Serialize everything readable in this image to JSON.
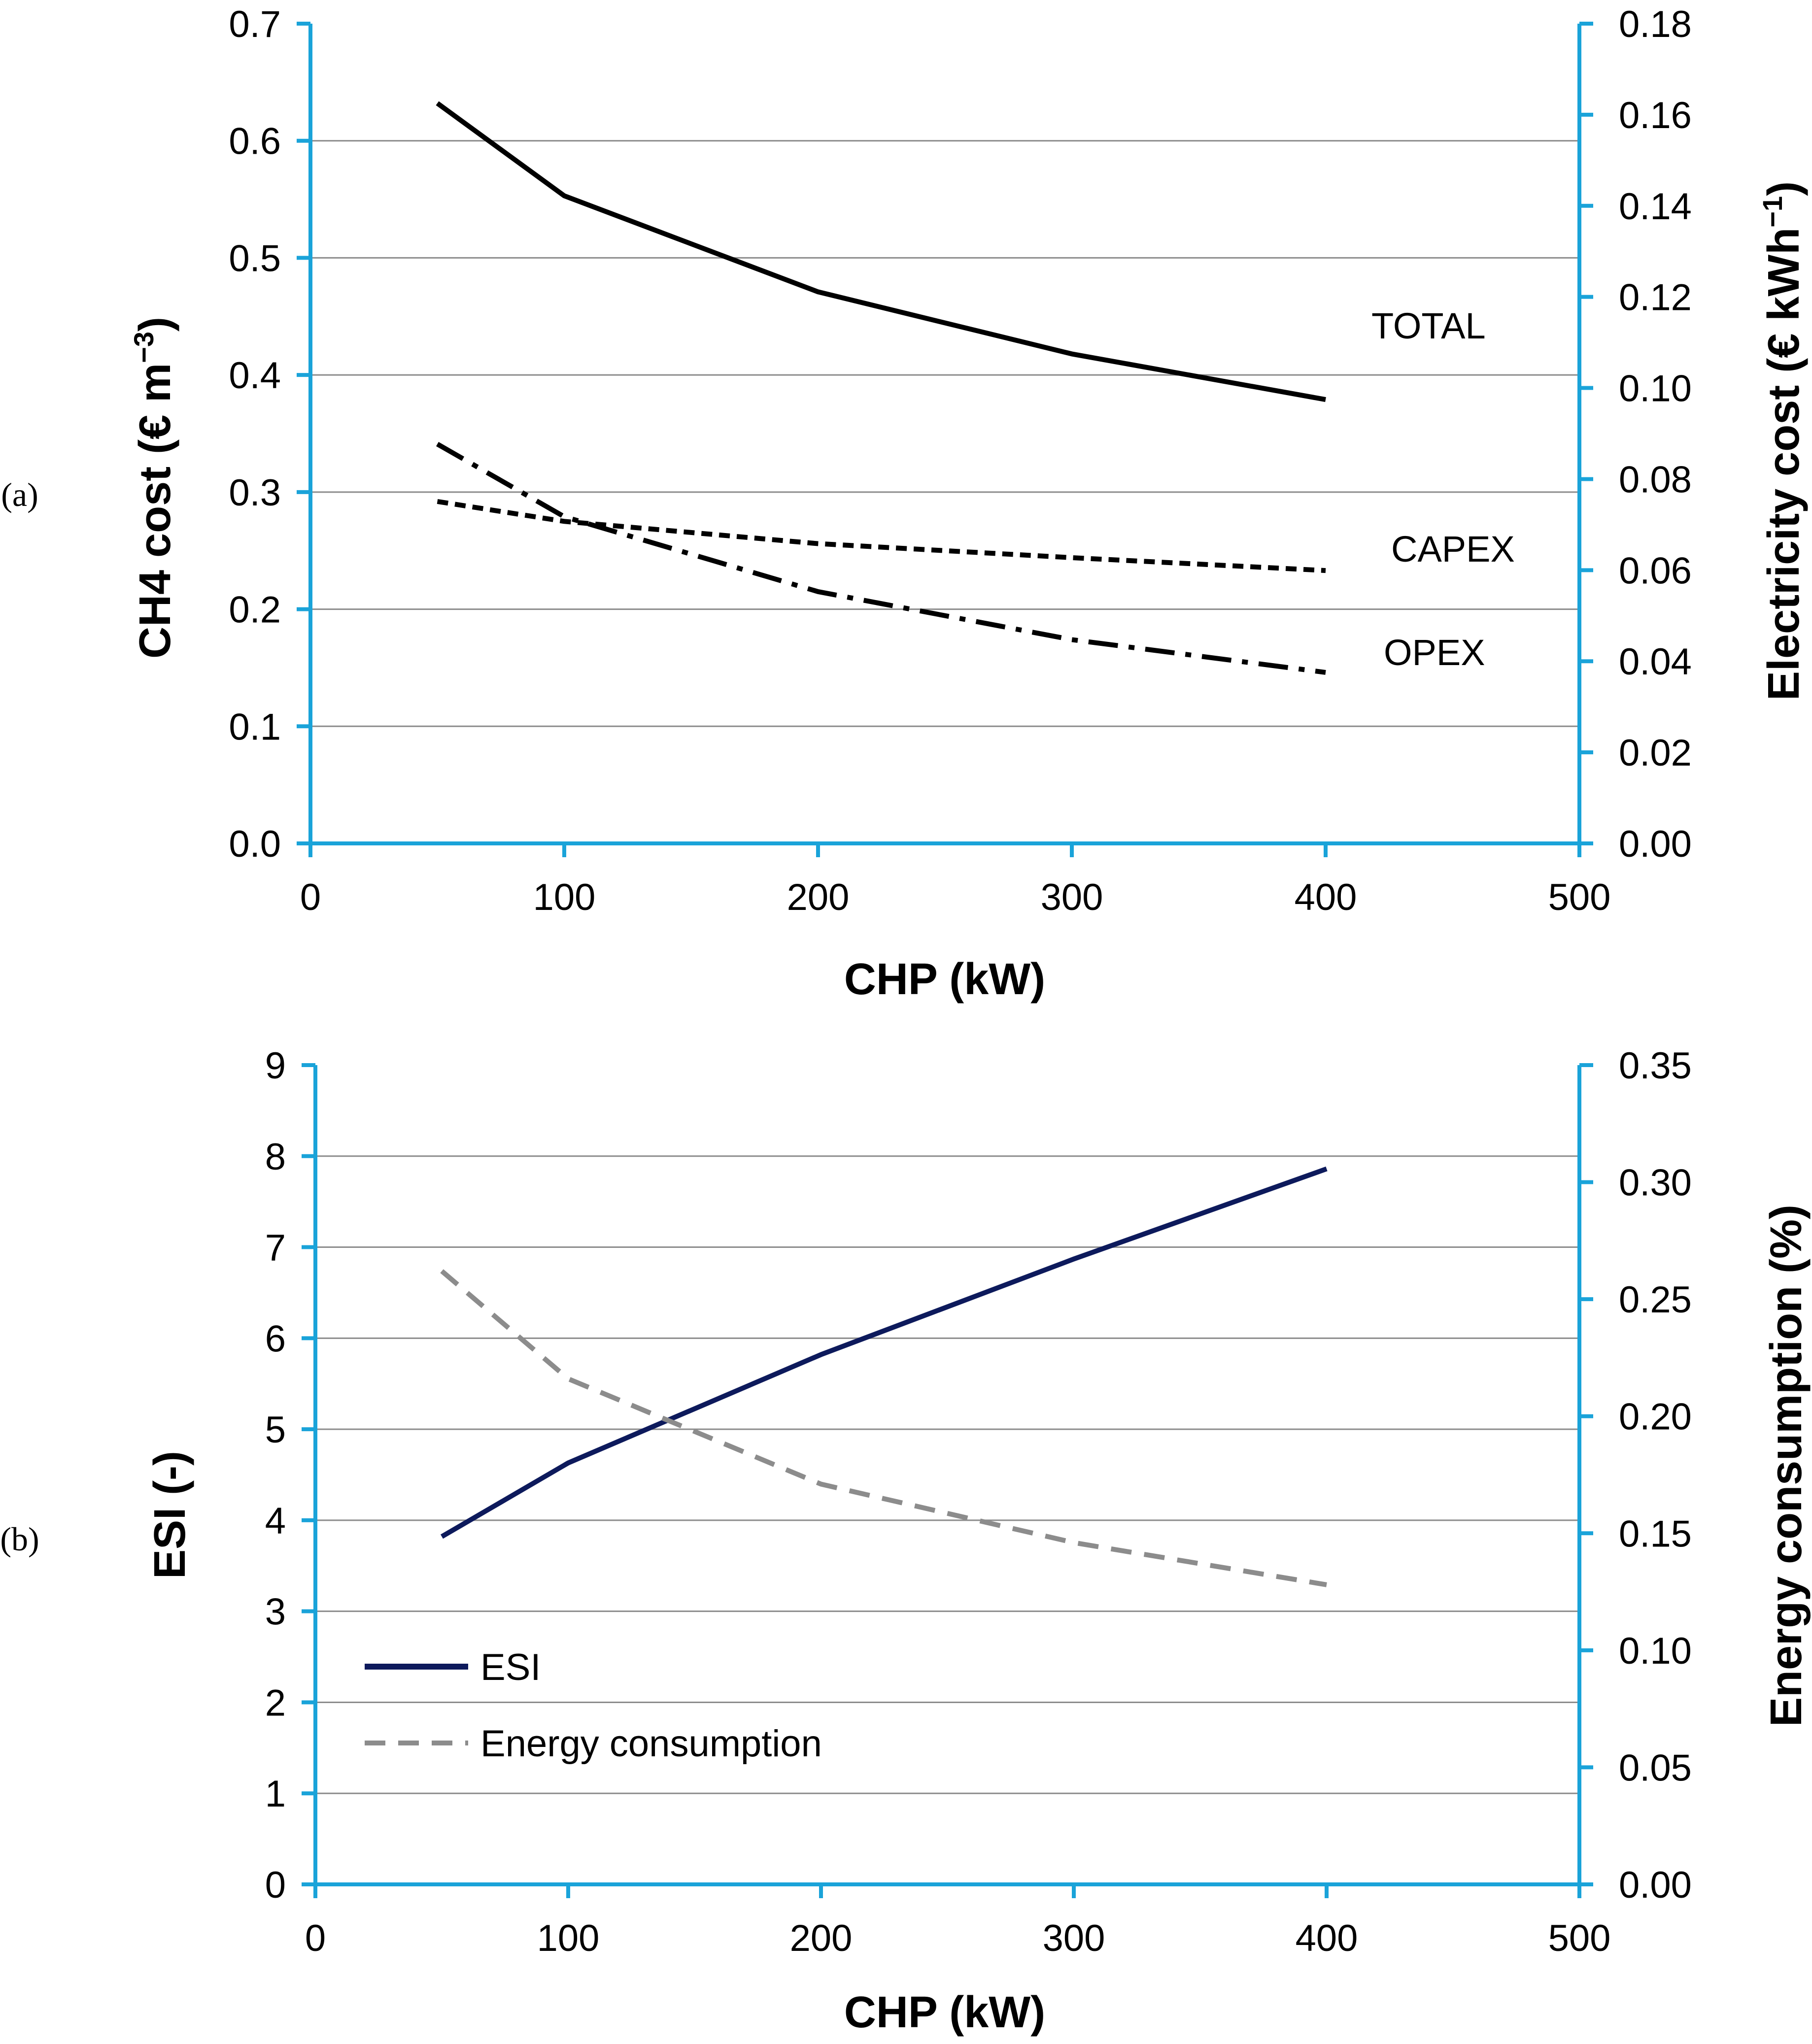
{
  "colors": {
    "axis": "#1aa3d9",
    "grid": "#8c8c8c",
    "black": "#000000",
    "esi": "#0d1a5c",
    "energy": "#8c8c8c"
  },
  "chart_data": [
    {
      "panel_label": "(a)",
      "type": "line",
      "xlabel": "CHP (kW)",
      "ylabel": "CH4 cost (€ m",
      "ylabel_sup": "−3",
      "ylabel_close": ")",
      "ylabel_right": "Electricity cost (€ kWh",
      "ylabel_right_sup": "−1",
      "ylabel_right_close": ")",
      "xlim": [
        0,
        500
      ],
      "ylim": [
        0,
        0.7
      ],
      "ylim_right": [
        0,
        0.18
      ],
      "x_ticks": [
        "0",
        "100",
        "200",
        "300",
        "400",
        "500"
      ],
      "y_ticks": [
        "0.0",
        "0.1",
        "0.2",
        "0.3",
        "0.4",
        "0.5",
        "0.6",
        "0.7"
      ],
      "y_ticks_right": [
        "0.00",
        "0.02",
        "0.04",
        "0.06",
        "0.08",
        "0.10",
        "0.12",
        "0.14",
        "0.16",
        "0.18"
      ],
      "series": [
        {
          "name": "TOTAL",
          "axis": "left",
          "style": "solid",
          "x": [
            50,
            100,
            200,
            300,
            400
          ],
          "values": [
            0.632,
            0.553,
            0.471,
            0.418,
            0.379
          ]
        },
        {
          "name": "CAPEX",
          "axis": "left",
          "style": "dotted",
          "x": [
            50,
            100,
            200,
            300,
            400
          ],
          "values": [
            0.292,
            0.275,
            0.256,
            0.244,
            0.233
          ]
        },
        {
          "name": "OPEX",
          "axis": "left",
          "style": "dashdot",
          "x": [
            50,
            100,
            200,
            300,
            400
          ],
          "values": [
            0.341,
            0.279,
            0.215,
            0.174,
            0.146
          ]
        }
      ]
    },
    {
      "panel_label": "(b)",
      "type": "line",
      "xlabel": "CHP (kW)",
      "ylabel": "ESI (-)",
      "ylabel_right": "Energy consumption (%)",
      "xlim": [
        0,
        500
      ],
      "ylim": [
        0,
        9
      ],
      "ylim_right": [
        0,
        0.35
      ],
      "x_ticks": [
        "0",
        "100",
        "200",
        "300",
        "400",
        "500"
      ],
      "y_ticks": [
        "0",
        "1",
        "2",
        "3",
        "4",
        "5",
        "6",
        "7",
        "8",
        "9"
      ],
      "y_ticks_right": [
        "0.00",
        "0.05",
        "0.10",
        "0.15",
        "0.20",
        "0.25",
        "0.30",
        "0.35"
      ],
      "legend": [
        "ESI",
        "Energy consumption"
      ],
      "legend_position": "lower-left",
      "series": [
        {
          "name": "ESI",
          "axis": "left",
          "style": "solid",
          "x": [
            50,
            100,
            200,
            300,
            400
          ],
          "values": [
            3.82,
            4.63,
            5.82,
            6.87,
            7.86
          ]
        },
        {
          "name": "Energy consumption",
          "axis": "right",
          "style": "dashed",
          "x": [
            50,
            100,
            200,
            300,
            400
          ],
          "values": [
            0.262,
            0.216,
            0.171,
            0.146,
            0.128
          ]
        }
      ]
    }
  ]
}
